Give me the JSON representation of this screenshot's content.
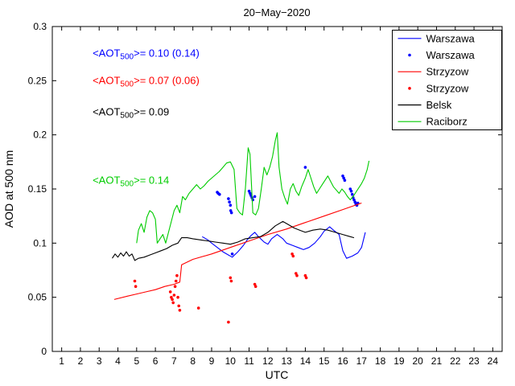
{
  "title": "20−May−2020",
  "xlabel": "UTC",
  "ylabel": "AOD at 500 nm",
  "chart_data": {
    "type": "line",
    "title": "20−May−2020",
    "xlabel": "UTC",
    "ylabel": "AOD at 500 nm",
    "xlim": [
      0.5,
      24.5
    ],
    "ylim": [
      0,
      0.3
    ],
    "xticks": [
      "1",
      "2",
      "3",
      "4",
      "5",
      "6",
      "7",
      "8",
      "9",
      "10",
      "11",
      "12",
      "13",
      "14",
      "15",
      "16",
      "17",
      "18",
      "19",
      "20",
      "21",
      "22",
      "23",
      "24"
    ],
    "yticks": [
      "0",
      "0.05",
      "0.1",
      "0.15",
      "0.2",
      "0.25",
      "0.3"
    ],
    "grid": false,
    "legend_position": "top-right",
    "series": [
      {
        "name": "Warszawa",
        "style": "line",
        "color": "#0000ff",
        "points": [
          [
            8.5,
            0.106
          ],
          [
            8.8,
            0.103
          ],
          [
            9.0,
            0.1
          ],
          [
            9.3,
            0.096
          ],
          [
            9.6,
            0.092
          ],
          [
            9.9,
            0.089
          ],
          [
            10.1,
            0.087
          ],
          [
            10.4,
            0.092
          ],
          [
            10.7,
            0.098
          ],
          [
            10.9,
            0.103
          ],
          [
            11.1,
            0.107
          ],
          [
            11.3,
            0.11
          ],
          [
            11.5,
            0.106
          ],
          [
            11.8,
            0.101
          ],
          [
            12.0,
            0.099
          ],
          [
            12.2,
            0.104
          ],
          [
            12.5,
            0.108
          ],
          [
            12.8,
            0.104
          ],
          [
            13.0,
            0.1
          ],
          [
            13.3,
            0.098
          ],
          [
            13.6,
            0.096
          ],
          [
            13.9,
            0.094
          ],
          [
            14.2,
            0.096
          ],
          [
            14.5,
            0.1
          ],
          [
            14.8,
            0.106
          ],
          [
            15.0,
            0.111
          ],
          [
            15.3,
            0.115
          ],
          [
            15.5,
            0.112
          ],
          [
            15.8,
            0.108
          ],
          [
            16.0,
            0.093
          ],
          [
            16.2,
            0.086
          ],
          [
            16.5,
            0.088
          ],
          [
            16.8,
            0.091
          ],
          [
            17.0,
            0.096
          ],
          [
            17.2,
            0.11
          ]
        ]
      },
      {
        "name": "Warszawa",
        "style": "scatter",
        "color": "#0000ff",
        "points": [
          [
            9.3,
            0.147
          ],
          [
            9.35,
            0.146
          ],
          [
            9.42,
            0.145
          ],
          [
            9.9,
            0.141
          ],
          [
            9.95,
            0.138
          ],
          [
            10.0,
            0.135
          ],
          [
            10.02,
            0.13
          ],
          [
            10.06,
            0.128
          ],
          [
            10.1,
            0.09
          ],
          [
            11.0,
            0.148
          ],
          [
            11.05,
            0.146
          ],
          [
            11.1,
            0.144
          ],
          [
            11.15,
            0.142
          ],
          [
            11.2,
            0.14
          ],
          [
            11.3,
            0.143
          ],
          [
            14.0,
            0.17
          ],
          [
            16.0,
            0.162
          ],
          [
            16.05,
            0.16
          ],
          [
            16.1,
            0.158
          ],
          [
            16.4,
            0.15
          ],
          [
            16.45,
            0.148
          ],
          [
            16.5,
            0.145
          ],
          [
            16.55,
            0.142
          ],
          [
            16.6,
            0.14
          ],
          [
            16.65,
            0.138
          ],
          [
            16.7,
            0.136
          ],
          [
            16.75,
            0.135
          ],
          [
            16.8,
            0.137
          ]
        ]
      },
      {
        "name": "Strzyzow",
        "style": "line",
        "color": "#ff0000",
        "points": [
          [
            3.8,
            0.048
          ],
          [
            4.5,
            0.051
          ],
          [
            5.0,
            0.053
          ],
          [
            5.5,
            0.055
          ],
          [
            6.0,
            0.057
          ],
          [
            6.5,
            0.06
          ],
          [
            7.0,
            0.062
          ],
          [
            7.3,
            0.064
          ],
          [
            7.4,
            0.08
          ],
          [
            8.0,
            0.085
          ],
          [
            9.0,
            0.09
          ],
          [
            10.0,
            0.096
          ],
          [
            11.0,
            0.102
          ],
          [
            12.0,
            0.108
          ],
          [
            13.0,
            0.113
          ],
          [
            14.0,
            0.119
          ],
          [
            15.0,
            0.125
          ],
          [
            16.0,
            0.131
          ],
          [
            16.5,
            0.134
          ],
          [
            17.0,
            0.137
          ]
        ]
      },
      {
        "name": "Strzyzow",
        "style": "scatter",
        "color": "#ff0000",
        "points": [
          [
            4.9,
            0.065
          ],
          [
            4.95,
            0.06
          ],
          [
            6.8,
            0.055
          ],
          [
            6.85,
            0.05
          ],
          [
            6.9,
            0.048
          ],
          [
            6.95,
            0.045
          ],
          [
            7.0,
            0.052
          ],
          [
            7.05,
            0.06
          ],
          [
            7.1,
            0.065
          ],
          [
            7.15,
            0.07
          ],
          [
            7.2,
            0.05
          ],
          [
            7.25,
            0.042
          ],
          [
            7.3,
            0.038
          ],
          [
            8.3,
            0.04
          ],
          [
            9.9,
            0.027
          ],
          [
            10.0,
            0.068
          ],
          [
            10.05,
            0.065
          ],
          [
            11.3,
            0.062
          ],
          [
            11.35,
            0.06
          ],
          [
            13.3,
            0.09
          ],
          [
            13.35,
            0.088
          ],
          [
            13.5,
            0.072
          ],
          [
            13.55,
            0.07
          ],
          [
            14.0,
            0.07
          ],
          [
            14.05,
            0.068
          ]
        ]
      },
      {
        "name": "Belsk",
        "style": "line",
        "color": "#000000",
        "points": [
          [
            3.7,
            0.086
          ],
          [
            3.85,
            0.09
          ],
          [
            4.0,
            0.087
          ],
          [
            4.15,
            0.091
          ],
          [
            4.3,
            0.088
          ],
          [
            4.45,
            0.092
          ],
          [
            4.6,
            0.088
          ],
          [
            4.75,
            0.09
          ],
          [
            4.9,
            0.084
          ],
          [
            5.1,
            0.086
          ],
          [
            5.4,
            0.087
          ],
          [
            5.7,
            0.089
          ],
          [
            6.0,
            0.091
          ],
          [
            6.3,
            0.093
          ],
          [
            6.6,
            0.095
          ],
          [
            6.9,
            0.098
          ],
          [
            7.2,
            0.1
          ],
          [
            7.4,
            0.105
          ],
          [
            7.7,
            0.105
          ],
          [
            8.0,
            0.104
          ],
          [
            8.4,
            0.103
          ],
          [
            8.8,
            0.102
          ],
          [
            9.2,
            0.101
          ],
          [
            9.6,
            0.1
          ],
          [
            10.0,
            0.099
          ],
          [
            10.4,
            0.101
          ],
          [
            10.8,
            0.104
          ],
          [
            11.2,
            0.105
          ],
          [
            11.6,
            0.106
          ],
          [
            12.0,
            0.11
          ],
          [
            12.4,
            0.116
          ],
          [
            12.8,
            0.12
          ],
          [
            13.1,
            0.117
          ],
          [
            13.4,
            0.114
          ],
          [
            13.7,
            0.112
          ],
          [
            14.0,
            0.11
          ],
          [
            14.4,
            0.112
          ],
          [
            14.8,
            0.113
          ],
          [
            15.2,
            0.112
          ],
          [
            15.6,
            0.11
          ],
          [
            16.0,
            0.108
          ],
          [
            16.4,
            0.106
          ],
          [
            16.6,
            0.105
          ]
        ]
      },
      {
        "name": "Raciborz",
        "style": "line",
        "color": "#00cc00",
        "points": [
          [
            5.0,
            0.1
          ],
          [
            5.1,
            0.112
          ],
          [
            5.25,
            0.118
          ],
          [
            5.4,
            0.11
          ],
          [
            5.55,
            0.124
          ],
          [
            5.7,
            0.13
          ],
          [
            5.85,
            0.128
          ],
          [
            6.0,
            0.122
          ],
          [
            6.1,
            0.1
          ],
          [
            6.25,
            0.104
          ],
          [
            6.4,
            0.108
          ],
          [
            6.55,
            0.1
          ],
          [
            6.7,
            0.11
          ],
          [
            6.85,
            0.12
          ],
          [
            7.0,
            0.13
          ],
          [
            7.15,
            0.135
          ],
          [
            7.3,
            0.128
          ],
          [
            7.45,
            0.143
          ],
          [
            7.6,
            0.14
          ],
          [
            7.8,
            0.146
          ],
          [
            8.0,
            0.15
          ],
          [
            8.2,
            0.154
          ],
          [
            8.4,
            0.15
          ],
          [
            8.6,
            0.153
          ],
          [
            8.8,
            0.157
          ],
          [
            9.0,
            0.16
          ],
          [
            9.2,
            0.163
          ],
          [
            9.4,
            0.166
          ],
          [
            9.6,
            0.17
          ],
          [
            9.8,
            0.174
          ],
          [
            10.0,
            0.175
          ],
          [
            10.2,
            0.168
          ],
          [
            10.35,
            0.132
          ],
          [
            10.5,
            0.128
          ],
          [
            10.65,
            0.126
          ],
          [
            10.8,
            0.15
          ],
          [
            10.95,
            0.188
          ],
          [
            11.05,
            0.182
          ],
          [
            11.2,
            0.128
          ],
          [
            11.35,
            0.126
          ],
          [
            11.5,
            0.132
          ],
          [
            11.65,
            0.15
          ],
          [
            11.8,
            0.17
          ],
          [
            11.95,
            0.163
          ],
          [
            12.1,
            0.17
          ],
          [
            12.25,
            0.18
          ],
          [
            12.4,
            0.195
          ],
          [
            12.5,
            0.202
          ],
          [
            12.6,
            0.17
          ],
          [
            12.75,
            0.15
          ],
          [
            12.9,
            0.142
          ],
          [
            13.05,
            0.136
          ],
          [
            13.2,
            0.15
          ],
          [
            13.35,
            0.155
          ],
          [
            13.5,
            0.148
          ],
          [
            13.65,
            0.144
          ],
          [
            13.8,
            0.152
          ],
          [
            14.0,
            0.16
          ],
          [
            14.15,
            0.168
          ],
          [
            14.3,
            0.16
          ],
          [
            14.45,
            0.152
          ],
          [
            14.6,
            0.146
          ],
          [
            14.75,
            0.15
          ],
          [
            14.9,
            0.154
          ],
          [
            15.05,
            0.158
          ],
          [
            15.2,
            0.162
          ],
          [
            15.35,
            0.157
          ],
          [
            15.5,
            0.152
          ],
          [
            15.65,
            0.149
          ],
          [
            15.8,
            0.146
          ],
          [
            15.95,
            0.15
          ],
          [
            16.1,
            0.147
          ],
          [
            16.25,
            0.143
          ],
          [
            16.4,
            0.14
          ],
          [
            16.55,
            0.143
          ],
          [
            16.7,
            0.147
          ],
          [
            16.85,
            0.151
          ],
          [
            17.0,
            0.155
          ],
          [
            17.15,
            0.16
          ],
          [
            17.3,
            0.168
          ],
          [
            17.4,
            0.176
          ]
        ]
      }
    ],
    "annotations": [
      {
        "prefix": "<AOT",
        "sub": "500",
        "rest": ">= 0.10 (0.14)",
        "color": "#0000ff",
        "x": 2.65,
        "y": 0.272
      },
      {
        "prefix": "<AOT",
        "sub": "500",
        "rest": ">= 0.07 (0.06)",
        "color": "#ff0000",
        "x": 2.65,
        "y": 0.247
      },
      {
        "prefix": "<AOT",
        "sub": "500",
        "rest": ">= 0.09",
        "color": "#000000",
        "x": 2.65,
        "y": 0.218
      },
      {
        "prefix": "<AOT",
        "sub": "500",
        "rest": ">= 0.14",
        "color": "#00cc00",
        "x": 2.65,
        "y": 0.155
      }
    ]
  }
}
